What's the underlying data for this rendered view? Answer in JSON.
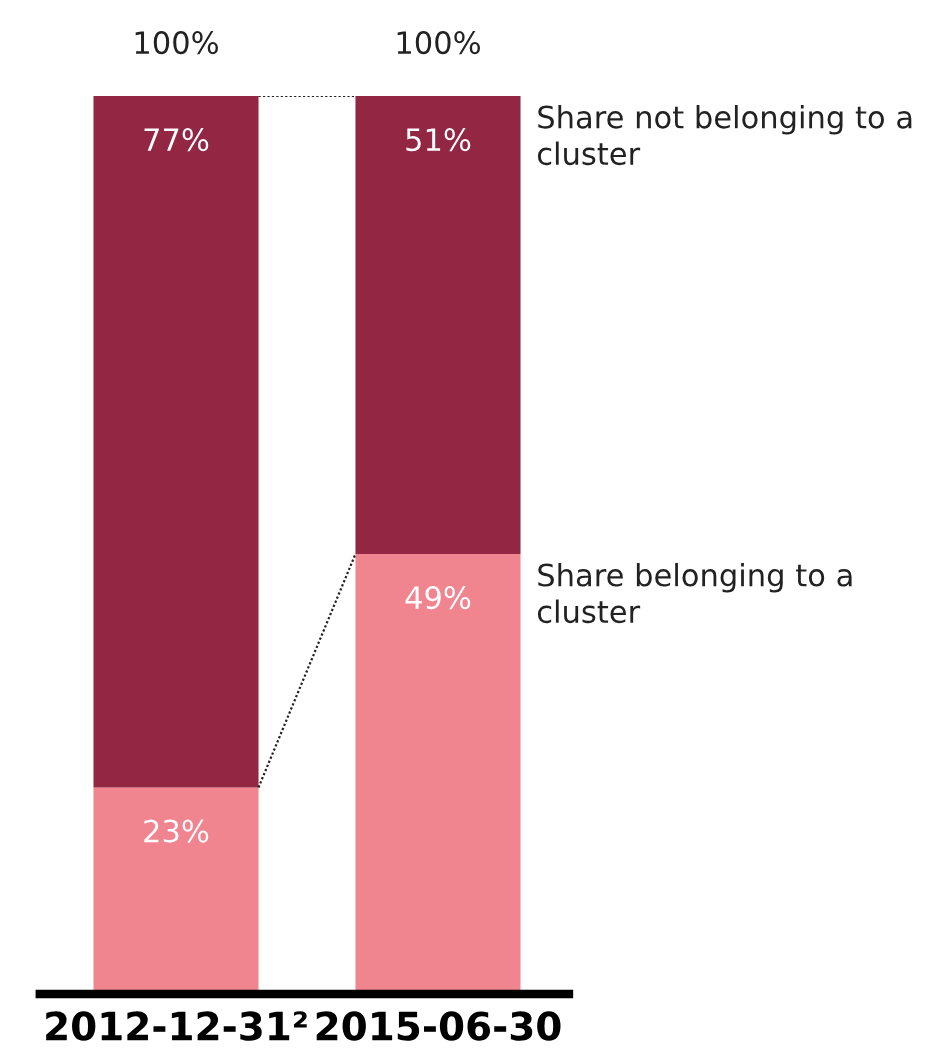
{
  "chart_data": {
    "type": "bar",
    "stacked": true,
    "categories": [
      "2012-12-31²",
      "2015-06-30"
    ],
    "series": [
      {
        "name": "Share belonging to a cluster",
        "color": "#f0848f",
        "values": [
          23,
          49
        ],
        "value_labels": [
          "23%",
          "49%"
        ]
      },
      {
        "name": "Share not belonging to a cluster",
        "color": "#922643",
        "values": [
          77,
          51
        ],
        "value_labels": [
          "77%",
          "51%"
        ]
      }
    ],
    "totals": [
      "100%",
      "100%"
    ],
    "legend": false,
    "grid": false
  }
}
